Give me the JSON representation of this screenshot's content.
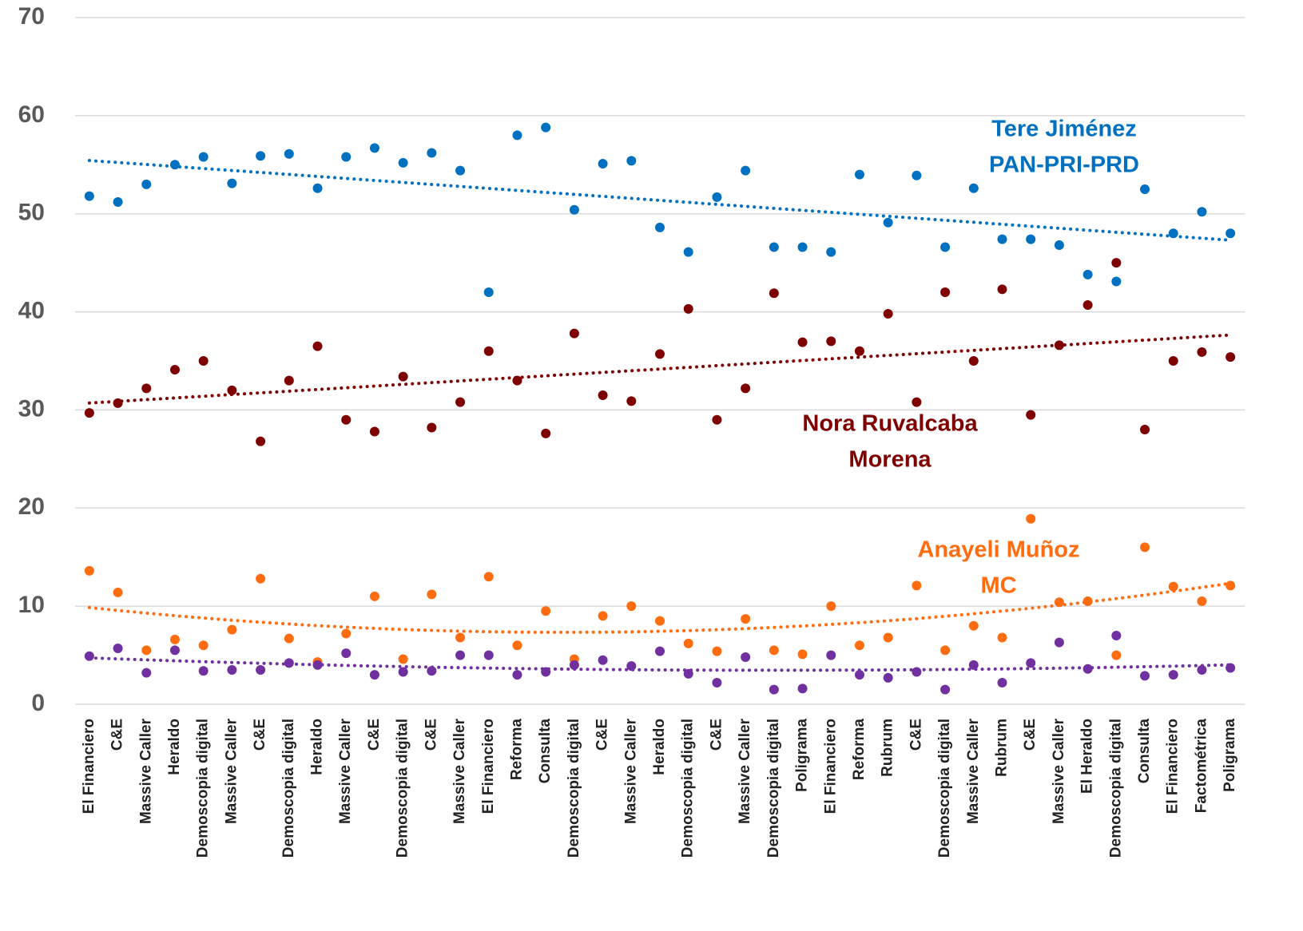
{
  "chart_data": {
    "type": "scatter",
    "categories": [
      "El Financiero",
      "C&E",
      "Massive Caller",
      "Heraldo",
      "Demoscopia digital",
      "Massive Caller",
      "C&E",
      "Demoscopia digital",
      "Heraldo",
      "Massive Caller",
      "C&E",
      "Demoscopia digital",
      "C&E",
      "Massive Caller",
      "El Financiero",
      "Reforma",
      "Consulta",
      "Demoscopia digital",
      "C&E",
      "Massive Caller",
      "Heraldo",
      "Demoscopia digital",
      "C&E",
      "Massive Caller",
      "Demoscopia digital",
      "Poligrama",
      "El Financiero",
      "Reforma",
      "Rubrum",
      "C&E",
      "Demoscopia digital",
      "Massive Caller",
      "Rubrum",
      "C&E",
      "Massive Caller",
      "El Heraldo",
      "Demoscopia digital",
      "Consulta",
      "El Financiero",
      "Factométrica",
      "Poligrama"
    ],
    "series": [
      {
        "label": [
          "Tere Jiménez",
          "PAN-PRI-PRD"
        ],
        "color": "#0070c0",
        "trendline": "linear",
        "values": [
          51.8,
          51.2,
          53.0,
          55.0,
          55.8,
          53.1,
          55.9,
          56.1,
          52.6,
          55.8,
          56.7,
          55.2,
          56.2,
          54.4,
          42.0,
          58.0,
          58.8,
          50.4,
          55.1,
          55.4,
          48.6,
          46.1,
          51.7,
          54.4,
          46.6,
          46.6,
          46.1,
          54.0,
          49.1,
          53.9,
          46.6,
          52.6,
          47.4,
          47.4,
          46.8,
          43.8,
          43.1,
          52.5,
          48.0,
          50.2,
          48.0
        ]
      },
      {
        "label": [
          "Nora Ruvalcaba",
          "Morena"
        ],
        "color": "#7f0000",
        "trendline": "linear",
        "values": [
          29.7,
          30.7,
          32.2,
          34.1,
          35.0,
          32.0,
          26.8,
          33.0,
          36.5,
          29.0,
          27.8,
          33.4,
          28.2,
          30.8,
          36.0,
          33.0,
          27.6,
          37.8,
          31.5,
          30.9,
          35.7,
          40.3,
          29.0,
          32.2,
          41.9,
          36.9,
          37.0,
          36.0,
          39.8,
          30.8,
          42.0,
          35.0,
          42.3,
          29.5,
          36.6,
          40.7,
          45.0,
          28.0,
          35.0,
          35.9,
          35.4
        ]
      },
      {
        "label": [
          "Anayeli Muñoz",
          "MC"
        ],
        "color": "#ff6d10",
        "trendline": "poly2",
        "values": [
          13.6,
          11.4,
          5.5,
          6.6,
          6.0,
          7.6,
          12.8,
          6.7,
          4.3,
          7.2,
          11.0,
          4.6,
          11.2,
          6.8,
          13.0,
          6.0,
          9.5,
          4.6,
          9.0,
          10.0,
          8.5,
          6.2,
          5.4,
          8.7,
          5.5,
          5.1,
          10.0,
          6.0,
          6.8,
          12.1,
          5.5,
          8.0,
          6.8,
          18.9,
          10.4,
          10.5,
          5.0,
          16.0,
          12.0,
          10.5,
          12.1
        ]
      },
      {
        "color": "#7030a0",
        "trendline": "poly2",
        "values": [
          4.9,
          5.7,
          3.2,
          5.5,
          3.4,
          3.5,
          3.5,
          4.2,
          4.0,
          5.2,
          3.0,
          3.3,
          3.4,
          5.0,
          5.0,
          3.0,
          3.3,
          4.0,
          4.5,
          3.9,
          5.4,
          3.1,
          2.2,
          4.8,
          1.5,
          1.6,
          5.0,
          3.0,
          2.7,
          3.3,
          1.5,
          4.0,
          2.2,
          4.2,
          6.3,
          3.6,
          7.0,
          2.9,
          3.0,
          3.5,
          3.7
        ]
      }
    ],
    "ylim": [
      0,
      70
    ],
    "yticks": [
      0,
      10,
      20,
      30,
      40,
      50,
      60,
      70
    ],
    "grid": true
  }
}
